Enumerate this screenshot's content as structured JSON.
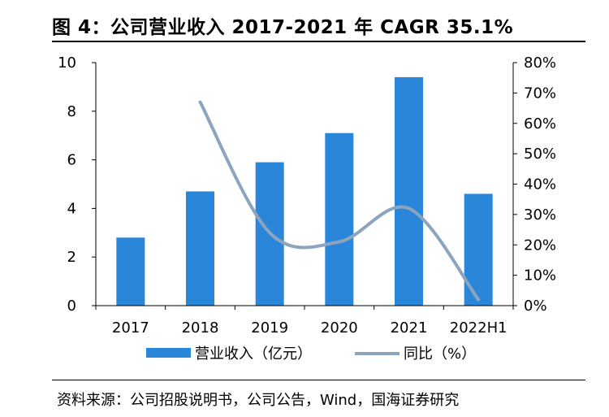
{
  "header": {
    "title": "图 4：公司营业收入 2017-2021 年 CAGR 35.1%"
  },
  "footer": {
    "source": "资料来源：公司招股说明书，公司公告，Wind，国海证券研究"
  },
  "colors": {
    "bar": "#2a86d9",
    "line": "#8da4be",
    "axis": "#000000"
  },
  "chart_data": {
    "type": "bar",
    "title": "",
    "xlabel": "",
    "ylabel": "",
    "categories": [
      "2017",
      "2018",
      "2019",
      "2020",
      "2021",
      "2022H1"
    ],
    "ylim": [
      0,
      10
    ],
    "y_ticks": [
      "0",
      "2",
      "4",
      "6",
      "8",
      "10"
    ],
    "y2lim": [
      0,
      80
    ],
    "y2_ticks": [
      "0%",
      "10%",
      "20%",
      "30%",
      "40%",
      "50%",
      "60%",
      "70%",
      "80%"
    ],
    "grid": false,
    "legend_position": "bottom",
    "series": [
      {
        "name": "营业收入（亿元）",
        "type": "bar",
        "axis": "left",
        "values": [
          2.8,
          4.7,
          5.9,
          7.1,
          9.4,
          4.6
        ]
      },
      {
        "name": "同比（%）",
        "type": "line",
        "axis": "right",
        "smooth": true,
        "values": [
          null,
          67,
          24,
          21,
          32,
          2
        ]
      }
    ]
  }
}
